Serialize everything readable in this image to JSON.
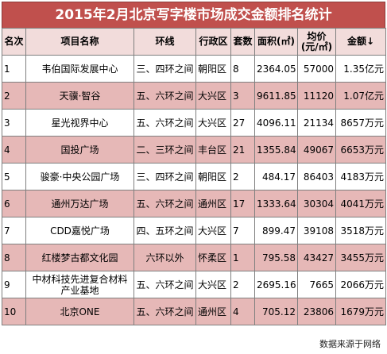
{
  "title": "2015年2月北京写字楼市场成交金额排名统计",
  "headers": {
    "rank": "名次",
    "project": "项目名称",
    "ring": "环线",
    "district": "行政区",
    "units": "套数",
    "area_line1": "面积(㎡)",
    "price_line1": "均价",
    "price_line2": "(元/㎡)",
    "amount": "金额↓"
  },
  "rows": [
    {
      "rank": "1",
      "project": "韦伯国际发展中心",
      "ring": "三、四环之间",
      "district": "朝阳区",
      "units": "8",
      "area": "2364.05",
      "price": "57000",
      "amount": "1.35亿元"
    },
    {
      "rank": "2",
      "project": "天骥·智谷",
      "ring": "五、六环之间",
      "district": "大兴区",
      "units": "3",
      "area": "9611.85",
      "price": "11120",
      "amount": "1.07亿元"
    },
    {
      "rank": "3",
      "project": "星光视界中心",
      "ring": "五、六环之间",
      "district": "大兴区",
      "units": "27",
      "area": "4096.11",
      "price": "21134",
      "amount": "8657万元"
    },
    {
      "rank": "4",
      "project": "国投广场",
      "ring": "二、三环之间",
      "district": "丰台区",
      "units": "21",
      "area": "1355.84",
      "price": "49067",
      "amount": "6653万元"
    },
    {
      "rank": "5",
      "project": "骏豪·中央公园广场",
      "ring": "三、四环之间",
      "district": "朝阳区",
      "units": "2",
      "area": "484.17",
      "price": "86403",
      "amount": "4183万元"
    },
    {
      "rank": "6",
      "project": "通州万达广场",
      "ring": "五、六环之间",
      "district": "通州区",
      "units": "17",
      "area": "1333.64",
      "price": "30304",
      "amount": "4041万元"
    },
    {
      "rank": "7",
      "project": "CDD嘉悦广场",
      "ring": "四、五环之间",
      "district": "大兴区",
      "units": "7",
      "area": "899.47",
      "price": "39108",
      "amount": "3518万元"
    },
    {
      "rank": "8",
      "project": "红楼梦古都文化园",
      "ring": "六环以外",
      "district": "怀柔区",
      "units": "1",
      "area": "795.58",
      "price": "43427",
      "amount": "3455万元"
    },
    {
      "rank": "9",
      "project": "中材科技先进复合材料产业基地",
      "ring": "五、六环之间",
      "district": "大兴区",
      "units": "2",
      "area": "2695.16",
      "price": "7665",
      "amount": "2066万元"
    },
    {
      "rank": "10",
      "project": "北京ONE",
      "ring": "五、六环之间",
      "district": "通州区",
      "units": "4",
      "area": "705.12",
      "price": "23806",
      "amount": "1679万元"
    }
  ],
  "source": "数据来源于网络"
}
